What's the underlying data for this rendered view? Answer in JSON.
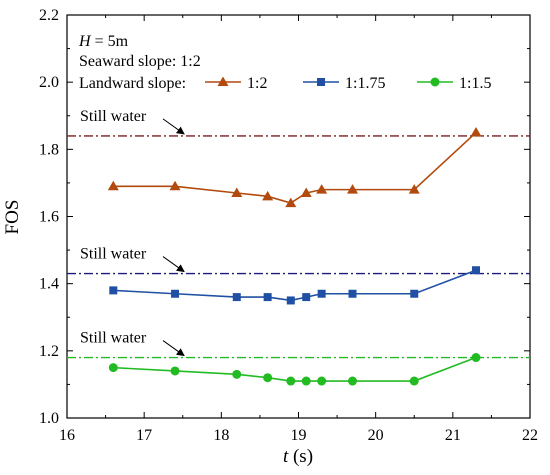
{
  "chart_data": {
    "type": "line",
    "xlabel_var": "t",
    "xlabel_unit": " (s)",
    "ylabel": "FOS",
    "xlim": [
      16,
      22
    ],
    "ylim": [
      1.0,
      2.2
    ],
    "xticks": [
      "16",
      "17",
      "18",
      "19",
      "20",
      "21",
      "22"
    ],
    "yticks": [
      "1.0",
      "1.2",
      "1.4",
      "1.6",
      "1.8",
      "2.0",
      "2.2"
    ],
    "grid": false,
    "legend_placement": "top-left",
    "annotations": {
      "h_var": "H",
      "h_value": " = 5m",
      "seaward": "Seaward slope: 1:2",
      "landward": "Landward slope:"
    },
    "series": [
      {
        "name": "1:2",
        "color": "#b34a0d",
        "marker": "triangle",
        "x": [
          16.6,
          17.4,
          18.2,
          18.6,
          18.9,
          19.1,
          19.3,
          19.7,
          20.5,
          21.3
        ],
        "y": [
          1.69,
          1.69,
          1.67,
          1.66,
          1.64,
          1.67,
          1.68,
          1.68,
          1.68,
          1.85
        ],
        "still_water": 1.84,
        "still_water_color": "#7a1f1f",
        "still_water_label": "Still water"
      },
      {
        "name": "1:1.75",
        "color": "#1f50a3",
        "marker": "square",
        "x": [
          16.6,
          17.4,
          18.2,
          18.6,
          18.9,
          19.1,
          19.3,
          19.7,
          20.5,
          21.3
        ],
        "y": [
          1.38,
          1.37,
          1.36,
          1.36,
          1.35,
          1.36,
          1.37,
          1.37,
          1.37,
          1.44
        ],
        "still_water": 1.43,
        "still_water_color": "#1c1c7a",
        "still_water_label": "Still water"
      },
      {
        "name": "1:1.5",
        "color": "#22bb22",
        "marker": "circle",
        "x": [
          16.6,
          17.4,
          18.2,
          18.6,
          18.9,
          19.1,
          19.3,
          19.7,
          20.5,
          21.3
        ],
        "y": [
          1.15,
          1.14,
          1.13,
          1.12,
          1.11,
          1.11,
          1.11,
          1.11,
          1.11,
          1.18
        ],
        "still_water": 1.18,
        "still_water_color": "#22bb22",
        "still_water_label": "Still water"
      }
    ]
  }
}
